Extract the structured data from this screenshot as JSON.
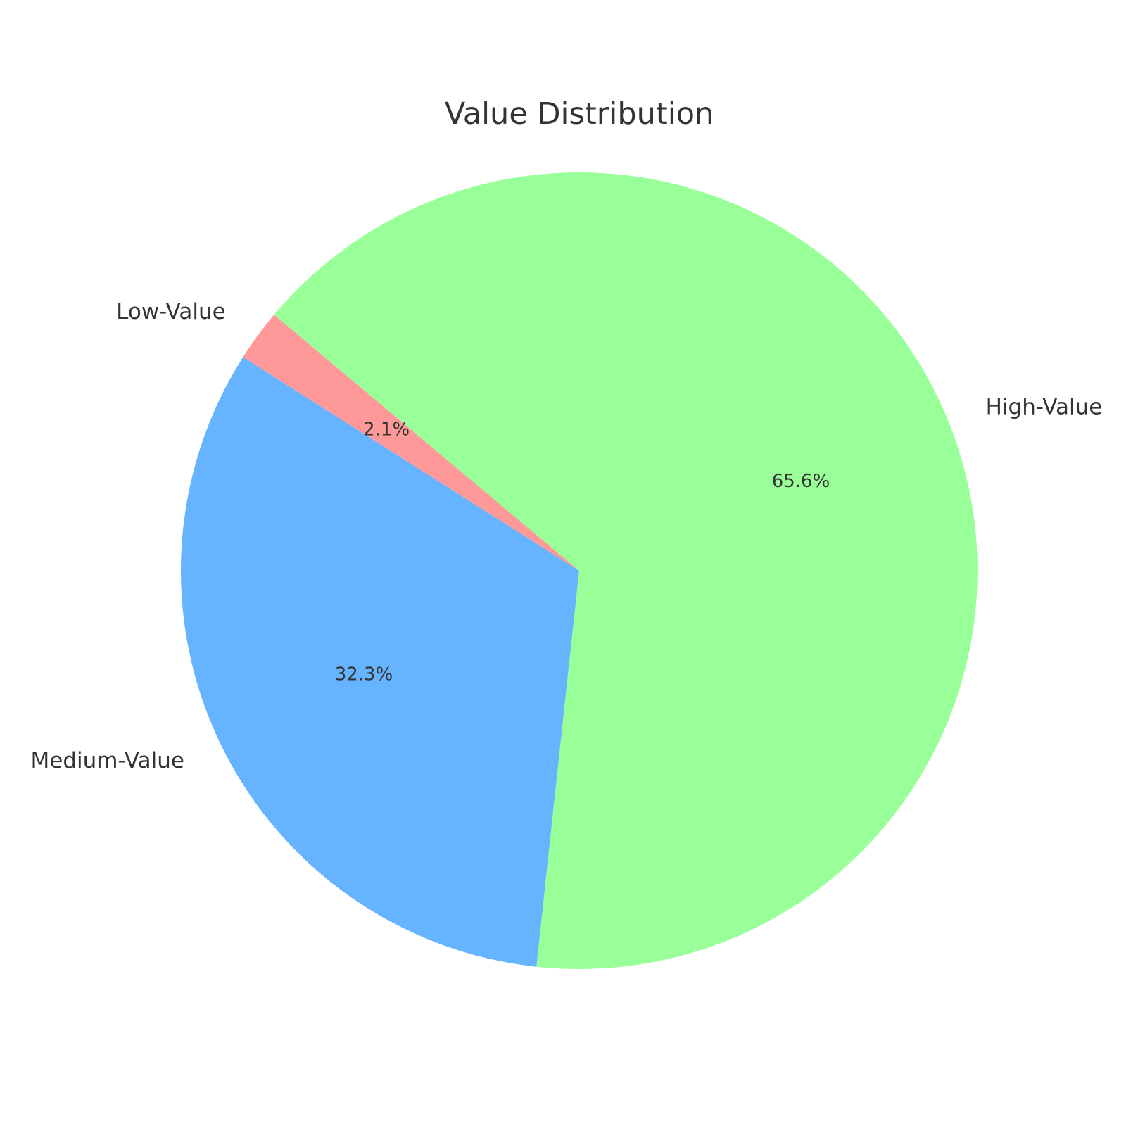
{
  "chart_data": {
    "type": "pie",
    "title": "Value Distribution",
    "slices": [
      {
        "label": "Low-Value",
        "value": 2.1,
        "pct_label": "2.1%",
        "color": "#ff9999"
      },
      {
        "label": "Medium-Value",
        "value": 32.3,
        "pct_label": "32.3%",
        "color": "#66b3ff"
      },
      {
        "label": "High-Value",
        "value": 65.6,
        "pct_label": "65.6%",
        "color": "#99ff99"
      }
    ],
    "start_angle_deg": 140,
    "direction": "counterclockwise",
    "legend": "none"
  }
}
